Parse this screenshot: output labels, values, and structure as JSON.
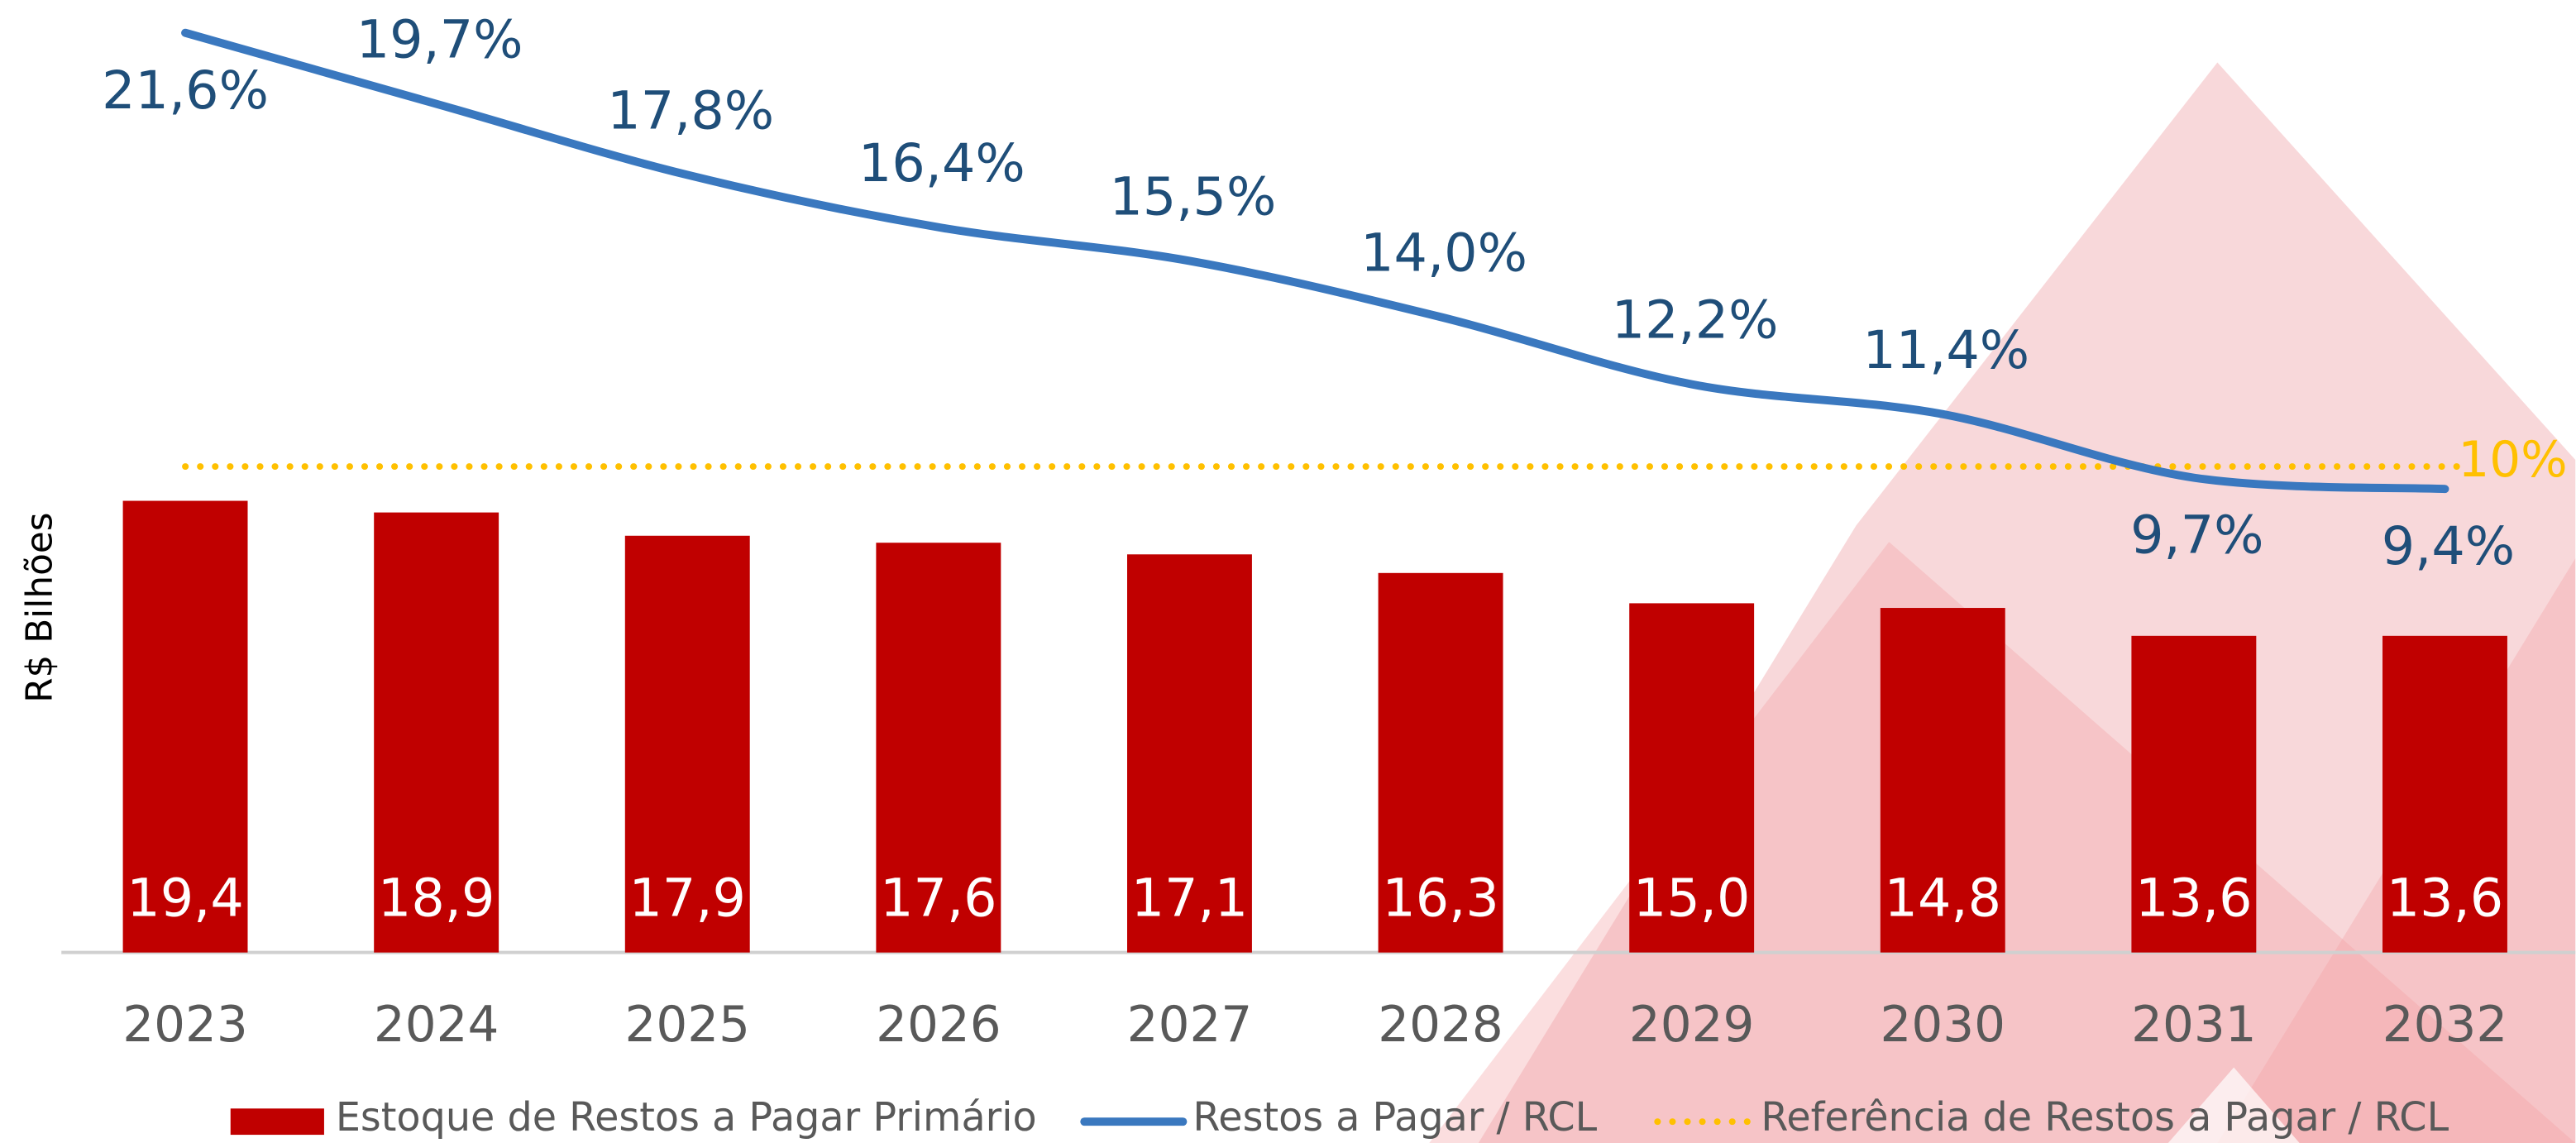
{
  "chart_data": {
    "type": "bar-line",
    "y_label": "R$ Bilhões",
    "categories": [
      "2023",
      "2024",
      "2025",
      "2026",
      "2027",
      "2028",
      "2029",
      "2030",
      "2031",
      "2032"
    ],
    "ylim": [
      0,
      39.5
    ],
    "y2lim": [
      -3.0,
      21.6
    ],
    "series": [
      {
        "name": "Estoque de Restos a Pagar Primário",
        "color": "#c00000",
        "kind": "bar",
        "values": [
          19.4,
          18.9,
          17.9,
          17.6,
          17.1,
          16.3,
          15.0,
          14.8,
          13.6,
          13.6
        ],
        "value_labels": [
          "19,4",
          "18,9",
          "17,9",
          "17,6",
          "17,1",
          "16,3",
          "15,0",
          "14,8",
          "13,6",
          "13,6"
        ]
      },
      {
        "name": "Restos a Pagar / RCL",
        "color": "#3a78bf",
        "kind": "line",
        "axis": "y2",
        "values": [
          21.6,
          19.7,
          17.8,
          16.4,
          15.5,
          14.0,
          12.2,
          11.4,
          9.7,
          9.4
        ],
        "value_labels": [
          "21,6%",
          "19,7%",
          "17,8%",
          "16,4%",
          "15,5%",
          "14,0%",
          "12,2%",
          "11,4%",
          "9,7%",
          "9,4%"
        ]
      }
    ],
    "reference": {
      "name": "Referência de Restos a Pagar / RCL",
      "color": "#ffc000",
      "axis": "y2",
      "value": 10,
      "label": "10%"
    }
  }
}
